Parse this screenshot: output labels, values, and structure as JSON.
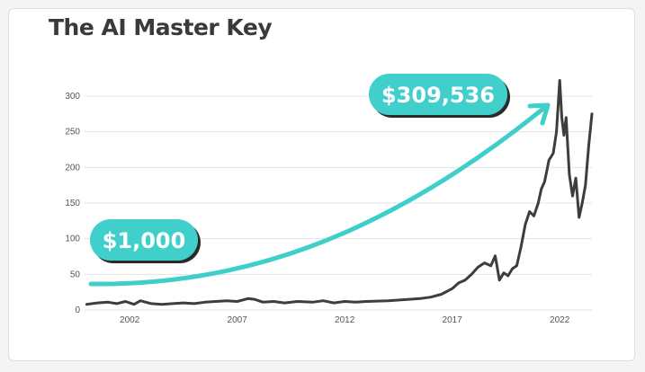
{
  "title": "The AI Master Key",
  "colors": {
    "accent": "#3fcfcb",
    "line": "#3d3d3d",
    "grid": "#e3e3e3",
    "badge_shadow": "#2a2a2a"
  },
  "annotations": {
    "start_value": "$1,000",
    "end_value": "$309,536"
  },
  "chart_data": {
    "type": "line",
    "title": "The AI Master Key",
    "xlabel": "",
    "ylabel": "",
    "xlim": [
      1999.9,
      2023.5
    ],
    "ylim": [
      0,
      300
    ],
    "x_ticks": [
      2002,
      2007,
      2012,
      2017,
      2022
    ],
    "y_ticks": [
      0,
      50,
      100,
      150,
      200,
      250,
      300
    ],
    "grid": "horizontal",
    "series": [
      {
        "x": [
          2000.0,
          2000.5,
          2001.0,
          2001.4,
          2001.8,
          2002.2,
          2002.5,
          2003.0,
          2003.5,
          2004.0,
          2004.5,
          2005.0,
          2005.5,
          2006.0,
          2006.5,
          2007.0,
          2007.5,
          2007.8,
          2008.2,
          2008.7,
          2009.2,
          2009.8,
          2010.5,
          2011.0,
          2011.5,
          2012.0,
          2012.5,
          2013.0,
          2014.0,
          2015.0,
          2015.5,
          2016.0,
          2016.5,
          2017.0,
          2017.3,
          2017.6,
          2017.9,
          2018.2,
          2018.5,
          2018.8,
          2019.0,
          2019.2,
          2019.4,
          2019.6,
          2019.8,
          2020.0,
          2020.2,
          2020.4,
          2020.6,
          2020.8,
          2021.0,
          2021.15,
          2021.3,
          2021.5,
          2021.7,
          2021.85,
          2022.0,
          2022.1,
          2022.2,
          2022.3,
          2022.45,
          2022.6,
          2022.75,
          2022.9,
          2023.05,
          2023.2,
          2023.35,
          2023.5
        ],
        "y": [
          8,
          10,
          11,
          9,
          12,
          8,
          13,
          9,
          8,
          9,
          10,
          9,
          11,
          12,
          13,
          12,
          16,
          15,
          11,
          12,
          10,
          12,
          11,
          13,
          10,
          12,
          11,
          12,
          13,
          15,
          16,
          18,
          22,
          30,
          38,
          42,
          50,
          60,
          66,
          62,
          76,
          42,
          52,
          48,
          58,
          62,
          88,
          120,
          138,
          132,
          150,
          170,
          180,
          210,
          220,
          250,
          322,
          270,
          245,
          270,
          190,
          160,
          185,
          130,
          150,
          175,
          230,
          275
        ]
      }
    ]
  }
}
